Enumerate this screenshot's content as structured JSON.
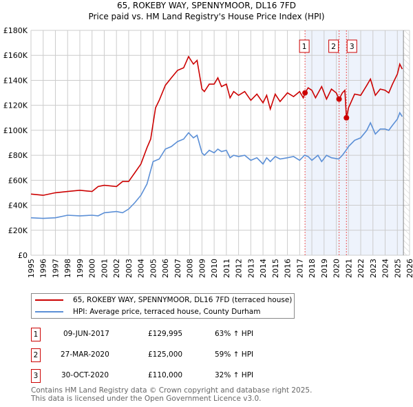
{
  "chart_data": {
    "type": "line",
    "title": "65, ROKEBY WAY, SPENNYMOOR, DL16 7FD",
    "subtitle": "Price paid vs. HM Land Registry's House Price Index (HPI)",
    "xlim": [
      1995,
      2026
    ],
    "ylim": [
      0,
      180000
    ],
    "x_ticks": [
      "1995",
      "1996",
      "1997",
      "1998",
      "1999",
      "2000",
      "2001",
      "2002",
      "2003",
      "2004",
      "2005",
      "2006",
      "2007",
      "2008",
      "2009",
      "2010",
      "2011",
      "2012",
      "2013",
      "2014",
      "2015",
      "2016",
      "2017",
      "2018",
      "2019",
      "2020",
      "2021",
      "2022",
      "2023",
      "2024",
      "2025",
      "2026"
    ],
    "y_ticks": [
      {
        "v": 0,
        "label": "£0"
      },
      {
        "v": 20000,
        "label": "£20K"
      },
      {
        "v": 40000,
        "label": "£40K"
      },
      {
        "v": 60000,
        "label": "£60K"
      },
      {
        "v": 80000,
        "label": "£80K"
      },
      {
        "v": 100000,
        "label": "£100K"
      },
      {
        "v": 120000,
        "label": "£120K"
      },
      {
        "v": 140000,
        "label": "£140K"
      },
      {
        "v": 160000,
        "label": "£160K"
      },
      {
        "v": 180000,
        "label": "£180K"
      }
    ],
    "grid": true,
    "shaded_from": 2017.44,
    "hatched_from": 2025.5,
    "series": [
      {
        "name": "65, ROKEBY WAY, SPENNYMOOR, DL16 7FD (terraced house)",
        "color": "#cc0000",
        "x": [
          1995,
          1996,
          1997,
          1998,
          1999,
          2000,
          2000.5,
          2001,
          2002,
          2002.5,
          2003,
          2003.5,
          2004,
          2004.5,
          2004.8,
          2005.2,
          2005.5,
          2006,
          2006.5,
          2007,
          2007.5,
          2007.9,
          2008.3,
          2008.6,
          2009,
          2009.2,
          2009.6,
          2010,
          2010.3,
          2010.6,
          2011,
          2011.3,
          2011.6,
          2012,
          2012.5,
          2013,
          2013.5,
          2014,
          2014.3,
          2014.6,
          2015,
          2015.4,
          2016,
          2016.5,
          2017,
          2017.3,
          2017.44,
          2017.7,
          2018,
          2018.3,
          2018.8,
          2019.2,
          2019.6,
          2020,
          2020.23,
          2020.5,
          2020.7,
          2020.83,
          2021,
          2021.5,
          2022,
          2022.5,
          2022.8,
          2023.2,
          2023.6,
          2024,
          2024.3,
          2024.6,
          2025,
          2025.2,
          2025.4
        ],
        "y": [
          49000,
          48000,
          50000,
          51000,
          52000,
          51000,
          55000,
          56000,
          55000,
          59000,
          59000,
          66000,
          73000,
          86000,
          93000,
          118000,
          124000,
          136000,
          142000,
          148000,
          150000,
          159000,
          153000,
          156000,
          133000,
          131000,
          137000,
          137000,
          142000,
          135000,
          137000,
          126000,
          131000,
          128000,
          131000,
          124000,
          129000,
          122000,
          128000,
          117000,
          129000,
          123000,
          130000,
          127000,
          131000,
          126000,
          129995,
          134000,
          132000,
          126000,
          135000,
          125000,
          133000,
          130000,
          125000,
          130000,
          132000,
          110000,
          118000,
          129000,
          128000,
          136000,
          141000,
          128000,
          133000,
          132000,
          130000,
          137000,
          145000,
          153000,
          149000
        ]
      },
      {
        "name": "HPI: Average price, terraced house, County Durham",
        "color": "#5b8fd6",
        "x": [
          1995,
          1996,
          1997,
          1998,
          1999,
          2000,
          2000.5,
          2001,
          2002,
          2002.5,
          2003,
          2003.5,
          2004,
          2004.5,
          2005,
          2005.5,
          2006,
          2006.5,
          2007,
          2007.5,
          2007.9,
          2008.3,
          2008.6,
          2009,
          2009.2,
          2009.6,
          2010,
          2010.3,
          2010.6,
          2011,
          2011.3,
          2011.6,
          2012,
          2012.5,
          2013,
          2013.5,
          2014,
          2014.3,
          2014.6,
          2015,
          2015.4,
          2016,
          2016.5,
          2017,
          2017.4,
          2017.7,
          2018,
          2018.5,
          2018.8,
          2019.2,
          2019.6,
          2020.2,
          2020.5,
          2020.8,
          2021,
          2021.5,
          2022,
          2022.5,
          2022.8,
          2023.2,
          2023.6,
          2024,
          2024.3,
          2024.6,
          2025,
          2025.2,
          2025.4
        ],
        "y": [
          30000,
          29500,
          30000,
          32000,
          31500,
          32000,
          31500,
          34000,
          35000,
          34000,
          37000,
          42000,
          48000,
          57000,
          75000,
          77000,
          85000,
          87000,
          91000,
          93000,
          98000,
          94000,
          96000,
          82000,
          80000,
          84000,
          82000,
          85000,
          83000,
          84000,
          78000,
          80000,
          79000,
          80000,
          76000,
          78000,
          73000,
          78000,
          75000,
          79000,
          77000,
          78000,
          79000,
          76000,
          80000,
          79000,
          76000,
          80000,
          75000,
          80000,
          78000,
          77000,
          80000,
          84000,
          87000,
          92000,
          94000,
          100000,
          106000,
          97000,
          101000,
          101000,
          100000,
          104000,
          109000,
          114000,
          111000
        ]
      }
    ],
    "sales": [
      {
        "label": "1",
        "date": "09-JUN-2017",
        "x": 2017.44,
        "price_value": 129995,
        "price": "£129,995",
        "hpi": "63% ↑ HPI"
      },
      {
        "label": "2",
        "date": "27-MAR-2020",
        "x": 2020.23,
        "price_value": 125000,
        "price": "£125,000",
        "hpi": "59% ↑ HPI"
      },
      {
        "label": "3",
        "date": "30-OCT-2020",
        "x": 2020.83,
        "price_value": 110000,
        "price": "£110,000",
        "hpi": "32% ↑ HPI"
      }
    ]
  },
  "footer": {
    "line1": "Contains HM Land Registry data © Crown copyright and database right 2025.",
    "line2": "This data is licensed under the Open Government Licence v3.0."
  }
}
